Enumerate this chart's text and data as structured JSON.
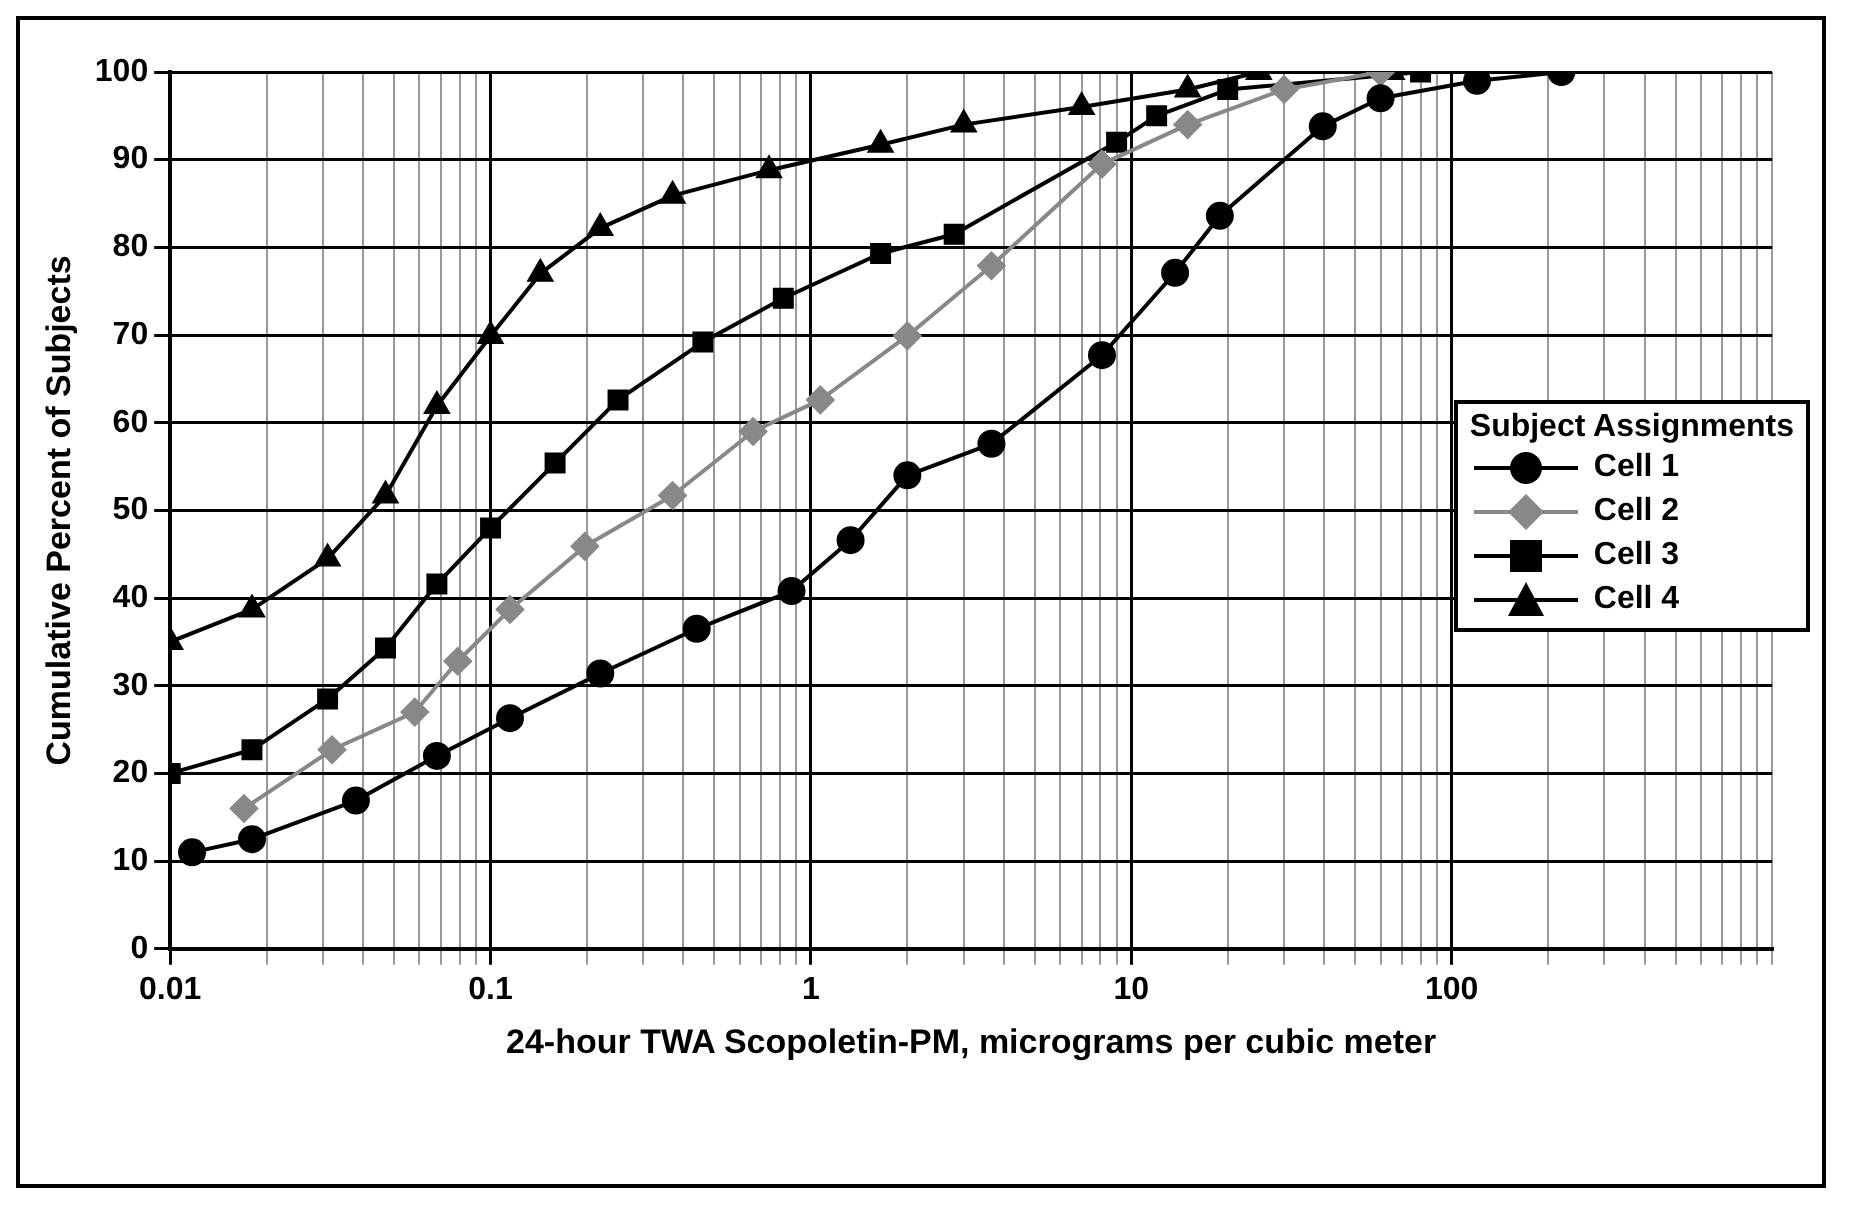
{
  "chart_data": {
    "type": "line",
    "xlabel": "24-hour TWA Scopoletin-PM, micrograms per cubic meter",
    "ylabel": "Cumulative Percent of Subjects",
    "legend_title": "Subject Assignments",
    "legend": "right",
    "grid": true,
    "log": "x",
    "xlim": [
      0.01,
      1000
    ],
    "ylim": [
      0,
      100
    ],
    "xticks": [
      0.01,
      {
        "value": 0.02,
        "label": null
      },
      {
        "value": 0.03,
        "label": null
      },
      {
        "value": 0.04,
        "label": null
      },
      {
        "value": 0.05,
        "label": null
      },
      {
        "value": 0.06,
        "label": null
      },
      {
        "value": 0.07,
        "label": null
      },
      {
        "value": 0.08,
        "label": null
      },
      {
        "value": 0.09,
        "label": null
      },
      0.1,
      {
        "value": 0.2,
        "label": null
      },
      {
        "value": 0.3,
        "label": null
      },
      {
        "value": 0.4,
        "label": null
      },
      {
        "value": 0.5,
        "label": null
      },
      {
        "value": 0.6,
        "label": null
      },
      {
        "value": 0.7,
        "label": null
      },
      {
        "value": 0.8,
        "label": null
      },
      {
        "value": 0.9,
        "label": null
      },
      1,
      {
        "value": 2,
        "label": null
      },
      {
        "value": 3,
        "label": null
      },
      {
        "value": 4,
        "label": null
      },
      {
        "value": 5,
        "label": null
      },
      {
        "value": 6,
        "label": null
      },
      {
        "value": 7,
        "label": null
      },
      {
        "value": 8,
        "label": null
      },
      {
        "value": 9,
        "label": null
      },
      10,
      {
        "value": 20,
        "label": null
      },
      {
        "value": 30,
        "label": null
      },
      {
        "value": 40,
        "label": null
      },
      {
        "value": 50,
        "label": null
      },
      {
        "value": 60,
        "label": null
      },
      {
        "value": 70,
        "label": null
      },
      {
        "value": 80,
        "label": null
      },
      {
        "value": 90,
        "label": null
      },
      100,
      {
        "value": 200,
        "label": null
      },
      {
        "value": 300,
        "label": null
      },
      {
        "value": 400,
        "label": null
      },
      {
        "value": 500,
        "label": null
      },
      {
        "value": 600,
        "label": null
      },
      {
        "value": 700,
        "label": null
      },
      {
        "value": 800,
        "label": null
      },
      {
        "value": 900,
        "label": null
      },
      {
        "value": 1000,
        "label": null
      }
    ],
    "yticks": [
      0,
      10,
      20,
      30,
      40,
      50,
      60,
      70,
      80,
      90,
      100
    ],
    "series": [
      {
        "name": "Cell 1",
        "color": "#000000",
        "marker": "circle",
        "x": [
          0.0117,
          0.018,
          0.038,
          0.068,
          0.115,
          0.22,
          0.44,
          0.87,
          1.33,
          2,
          3.66,
          8.1,
          13.7,
          18.9,
          39.6,
          60,
          120,
          220
        ],
        "values": [
          11,
          12.5,
          16.9,
          22,
          26.3,
          31.4,
          36.5,
          40.8,
          46.6,
          54,
          57.6,
          67.7,
          77.1,
          83.6,
          93.8,
          97,
          99,
          100
        ]
      },
      {
        "name": "Cell 2",
        "color": "#888888",
        "marker": "diamond",
        "x": [
          0.017,
          0.032,
          0.058,
          0.079,
          0.115,
          0.197,
          0.37,
          0.66,
          1.07,
          2,
          3.66,
          8.1,
          15,
          30,
          60
        ],
        "values": [
          16,
          22.7,
          27,
          32.8,
          38.7,
          45.9,
          51.7,
          59,
          62.6,
          69.9,
          77.9,
          89.5,
          94,
          98,
          100
        ]
      },
      {
        "name": "Cell 3",
        "color": "#000000",
        "marker": "square",
        "x": [
          0.01,
          0.018,
          0.031,
          0.047,
          0.068,
          0.1,
          0.159,
          0.25,
          0.46,
          0.82,
          1.65,
          2.8,
          9,
          12,
          20,
          80
        ],
        "values": [
          20,
          22.7,
          28.5,
          34.3,
          41.6,
          48,
          55.4,
          62.6,
          69.2,
          74.2,
          79.3,
          81.5,
          92,
          95,
          98,
          100
        ]
      },
      {
        "name": "Cell 4",
        "color": "#000000",
        "marker": "triangle",
        "x": [
          0.01,
          0.018,
          0.031,
          0.047,
          0.068,
          0.1,
          0.143,
          0.22,
          0.37,
          0.74,
          1.65,
          3,
          7,
          15,
          25,
          65
        ],
        "values": [
          35,
          38.7,
          44.5,
          51.7,
          61.9,
          69.9,
          77,
          82.2,
          85.9,
          88.8,
          91.7,
          94,
          96,
          98,
          100,
          100
        ]
      }
    ]
  }
}
